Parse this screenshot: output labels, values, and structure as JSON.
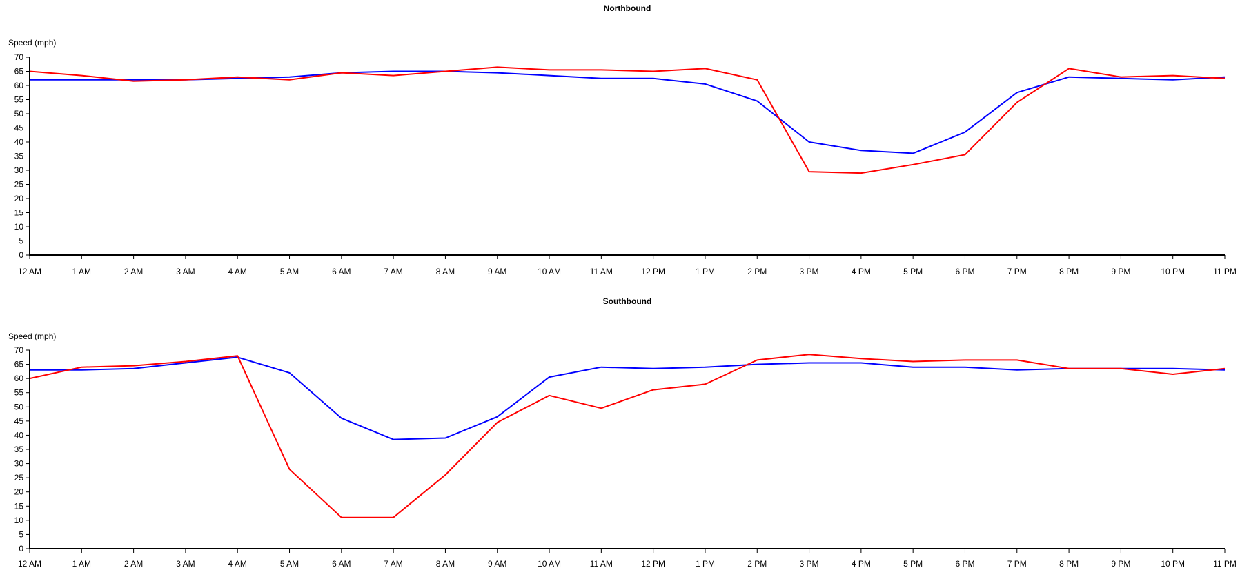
{
  "chart_data": [
    {
      "type": "line",
      "title": "Northbound",
      "ylabel": "Speed (mph)",
      "xlabel": "",
      "ylim": [
        0,
        70
      ],
      "yticks": [
        0,
        5,
        10,
        15,
        20,
        25,
        30,
        35,
        40,
        45,
        50,
        55,
        60,
        65,
        70
      ],
      "categories": [
        "12 AM",
        "1 AM",
        "2 AM",
        "3 AM",
        "4 AM",
        "5 AM",
        "6 AM",
        "7 AM",
        "8 AM",
        "9 AM",
        "10 AM",
        "11 AM",
        "12 PM",
        "1 PM",
        "2 PM",
        "3 PM",
        "4 PM",
        "5 PM",
        "6 PM",
        "7 PM",
        "8 PM",
        "9 PM",
        "10 PM",
        "11 PM"
      ],
      "grid": false,
      "legend": "none",
      "series": [
        {
          "color": "#0000ff",
          "values": [
            62,
            62,
            62,
            62,
            62.5,
            63,
            64.5,
            65,
            65,
            64.5,
            63.5,
            62.5,
            62.5,
            60.5,
            54.5,
            40,
            37,
            36,
            43.5,
            57.5,
            63,
            62.5,
            62,
            63
          ]
        },
        {
          "color": "#ff0000",
          "values": [
            65,
            63.5,
            61.5,
            62,
            63,
            62,
            64.5,
            63.5,
            65,
            66.5,
            65.5,
            65.5,
            65,
            66,
            62,
            29.5,
            29,
            32,
            35.5,
            54,
            66,
            63,
            63.5,
            62.5
          ]
        }
      ]
    },
    {
      "type": "line",
      "title": "Southbound",
      "ylabel": "Speed (mph)",
      "xlabel": "",
      "ylim": [
        0,
        70
      ],
      "yticks": [
        0,
        5,
        10,
        15,
        20,
        25,
        30,
        35,
        40,
        45,
        50,
        55,
        60,
        65,
        70
      ],
      "categories": [
        "12 AM",
        "1 AM",
        "2 AM",
        "3 AM",
        "4 AM",
        "5 AM",
        "6 AM",
        "7 AM",
        "8 AM",
        "9 AM",
        "10 AM",
        "11 AM",
        "12 PM",
        "1 PM",
        "2 PM",
        "3 PM",
        "4 PM",
        "5 PM",
        "6 PM",
        "7 PM",
        "8 PM",
        "9 PM",
        "10 PM",
        "11 PM"
      ],
      "grid": false,
      "legend": "none",
      "series": [
        {
          "color": "#0000ff",
          "values": [
            63,
            63,
            63.5,
            65.5,
            67.5,
            62,
            46,
            38.5,
            39,
            46.5,
            60.5,
            64,
            63.5,
            64,
            65,
            65.5,
            65.5,
            64,
            64,
            63,
            63.5,
            63.5,
            63.5,
            63
          ]
        },
        {
          "color": "#ff0000",
          "values": [
            60,
            64,
            64.5,
            66,
            68,
            28,
            11,
            11,
            26,
            44.5,
            54,
            49.5,
            56,
            58,
            66.5,
            68.5,
            67,
            66,
            66.5,
            66.5,
            63.5,
            63.5,
            61.5,
            63.5
          ]
        }
      ]
    }
  ]
}
